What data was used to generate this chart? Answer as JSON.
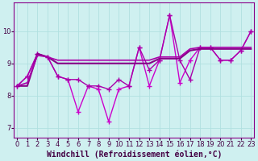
{
  "xlabel": "Windchill (Refroidissement éolien,°C)",
  "ylabel": "",
  "x_values": [
    0,
    1,
    2,
    3,
    4,
    5,
    6,
    7,
    8,
    9,
    10,
    11,
    12,
    13,
    14,
    15,
    16,
    17,
    18,
    19,
    20,
    21,
    22,
    23
  ],
  "series": [
    {
      "y": [
        8.3,
        8.6,
        9.3,
        9.2,
        8.6,
        8.5,
        7.5,
        8.3,
        8.2,
        7.2,
        8.2,
        8.3,
        9.5,
        8.3,
        9.1,
        10.5,
        8.4,
        9.1,
        9.5,
        9.5,
        9.1,
        9.1,
        9.4,
        10.0
      ],
      "color": "#cc00cc",
      "linewidth": 1.0,
      "marker": "+",
      "markersize": 4
    },
    {
      "y": [
        8.3,
        8.6,
        9.3,
        9.2,
        8.6,
        8.5,
        8.5,
        8.3,
        8.3,
        8.2,
        8.5,
        8.3,
        9.5,
        8.8,
        9.1,
        10.5,
        9.1,
        8.5,
        9.5,
        9.5,
        9.1,
        9.1,
        9.4,
        10.0
      ],
      "color": "#aa00aa",
      "linewidth": 1.0,
      "marker": "+",
      "markersize": 4
    },
    {
      "y": [
        8.3,
        8.3,
        9.3,
        9.2,
        9.0,
        9.0,
        9.0,
        9.0,
        9.0,
        9.0,
        9.0,
        9.0,
        9.0,
        9.0,
        9.15,
        9.15,
        9.15,
        9.4,
        9.45,
        9.45,
        9.45,
        9.45,
        9.45,
        9.45
      ],
      "color": "#880088",
      "linewidth": 1.5,
      "marker": null,
      "markersize": 0
    },
    {
      "y": [
        8.3,
        8.4,
        9.25,
        9.2,
        9.1,
        9.1,
        9.1,
        9.1,
        9.1,
        9.1,
        9.1,
        9.1,
        9.1,
        9.1,
        9.2,
        9.2,
        9.2,
        9.45,
        9.5,
        9.5,
        9.5,
        9.5,
        9.5,
        9.5
      ],
      "color": "#aa00aa",
      "linewidth": 1.2,
      "marker": null,
      "markersize": 0
    }
  ],
  "xlim": [
    -0.3,
    23.3
  ],
  "ylim": [
    6.7,
    10.9
  ],
  "yticks": [
    7,
    8,
    9,
    10
  ],
  "xticks": [
    0,
    1,
    2,
    3,
    4,
    5,
    6,
    7,
    8,
    9,
    10,
    11,
    12,
    13,
    14,
    15,
    16,
    17,
    18,
    19,
    20,
    21,
    22,
    23
  ],
  "bg_color": "#cff0f0",
  "grid_color": "#b0e0e0",
  "tick_fontsize": 6,
  "label_fontsize": 7
}
